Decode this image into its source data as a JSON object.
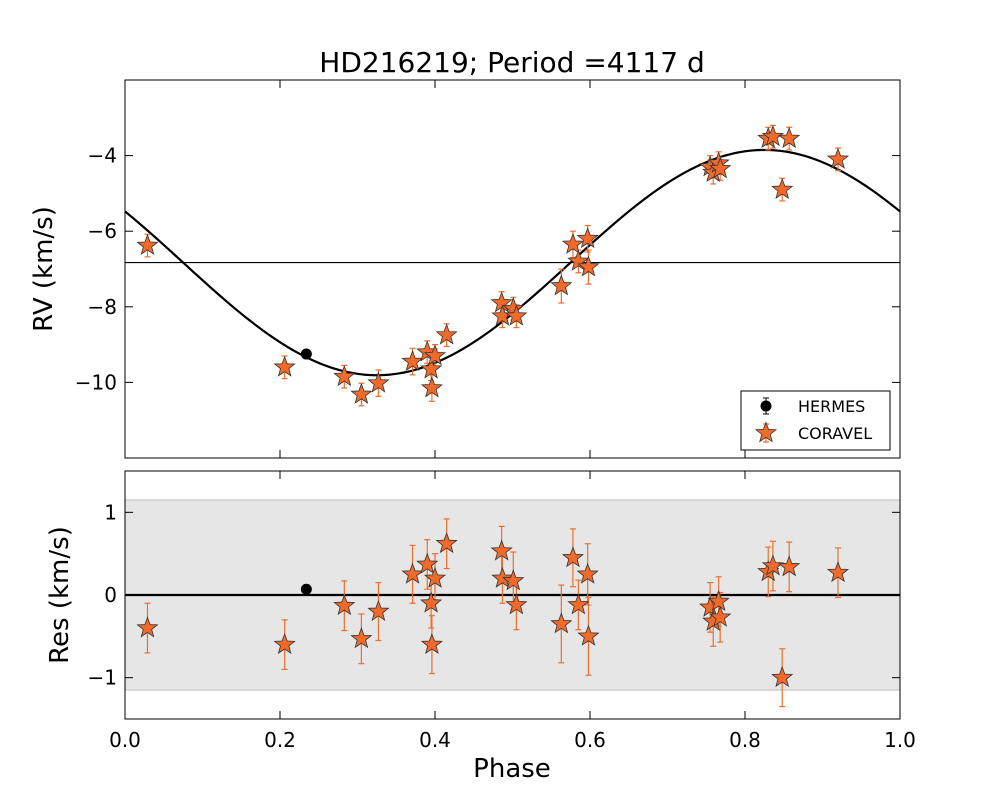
{
  "chart_data": {
    "type": "scatter",
    "title": "HD216219; Period =4117 d",
    "period_days": 4117,
    "colors": {
      "coravel_face": "#f26a2a",
      "coravel_error": "#e8702c",
      "hermes_face": "#000000",
      "band": "#e6e6e6",
      "band_edge": "#bdbdbd"
    },
    "x_axis": {
      "label": "Phase",
      "lim": [
        0.0,
        1.0
      ],
      "ticks": [
        0.0,
        0.2,
        0.4,
        0.6,
        0.8,
        1.0
      ],
      "tick_labels": [
        "0.0",
        "0.2",
        "0.4",
        "0.6",
        "0.8",
        "1.0"
      ]
    },
    "rv_panel": {
      "ylabel": "RV (km/s)",
      "ylim": [
        -12.0,
        -2.0
      ],
      "yticks": [
        -10,
        -8,
        -6,
        -4
      ],
      "ytick_labels": [
        "−10",
        "−8",
        "−6",
        "−4"
      ],
      "systemic_velocity": -6.83,
      "model": {
        "semi_amplitude": 2.98,
        "phase_of_maximum": 0.825,
        "x": [
          0.0,
          0.05,
          0.1,
          0.15,
          0.2,
          0.25,
          0.3,
          0.35,
          0.4,
          0.45,
          0.5,
          0.55,
          0.6,
          0.65,
          0.7,
          0.75,
          0.8,
          0.85,
          0.9,
          0.95,
          1.0
        ],
        "y": [
          -5.45,
          -6.36,
          -7.3,
          -8.14,
          -8.87,
          -9.43,
          -9.77,
          -9.81,
          -9.56,
          -9.07,
          -8.39,
          -7.59,
          -6.71,
          -5.85,
          -5.07,
          -4.44,
          -4.0,
          -3.82,
          -3.93,
          -4.36,
          -5.45
        ]
      },
      "series": [
        {
          "name": "HERMES",
          "marker": "circle",
          "points": [
            {
              "phase": 0.234,
              "rv": -9.25,
              "err": 0.08
            }
          ]
        },
        {
          "name": "CORAVEL",
          "marker": "star",
          "points": [
            {
              "phase": 0.029,
              "rv": -6.38,
              "err": 0.3
            },
            {
              "phase": 0.206,
              "rv": -9.6,
              "err": 0.3
            },
            {
              "phase": 0.283,
              "rv": -9.85,
              "err": 0.3
            },
            {
              "phase": 0.305,
              "rv": -10.32,
              "err": 0.3
            },
            {
              "phase": 0.327,
              "rv": -10.02,
              "err": 0.35
            },
            {
              "phase": 0.371,
              "rv": -9.45,
              "err": 0.35
            },
            {
              "phase": 0.39,
              "rv": -9.2,
              "err": 0.3
            },
            {
              "phase": 0.395,
              "rv": -9.65,
              "err": 0.3
            },
            {
              "phase": 0.396,
              "rv": -10.15,
              "err": 0.35
            },
            {
              "phase": 0.4,
              "rv": -9.3,
              "err": 0.3
            },
            {
              "phase": 0.415,
              "rv": -8.75,
              "err": 0.3
            },
            {
              "phase": 0.486,
              "rv": -7.9,
              "err": 0.3
            },
            {
              "phase": 0.487,
              "rv": -8.25,
              "err": 0.3
            },
            {
              "phase": 0.501,
              "rv": -8.05,
              "err": 0.3
            },
            {
              "phase": 0.505,
              "rv": -8.25,
              "err": 0.3
            },
            {
              "phase": 0.563,
              "rv": -7.45,
              "err": 0.45
            },
            {
              "phase": 0.578,
              "rv": -6.35,
              "err": 0.35
            },
            {
              "phase": 0.585,
              "rv": -6.8,
              "err": 0.3
            },
            {
              "phase": 0.597,
              "rv": -6.2,
              "err": 0.35
            },
            {
              "phase": 0.598,
              "rv": -6.95,
              "err": 0.45
            },
            {
              "phase": 0.755,
              "rv": -4.3,
              "err": 0.3
            },
            {
              "phase": 0.759,
              "rv": -4.45,
              "err": 0.3
            },
            {
              "phase": 0.766,
              "rv": -4.2,
              "err": 0.3
            },
            {
              "phase": 0.768,
              "rv": -4.35,
              "err": 0.3
            },
            {
              "phase": 0.83,
              "rv": -3.55,
              "err": 0.3
            },
            {
              "phase": 0.836,
              "rv": -3.5,
              "err": 0.3
            },
            {
              "phase": 0.848,
              "rv": -4.9,
              "err": 0.3
            },
            {
              "phase": 0.857,
              "rv": -3.55,
              "err": 0.3
            },
            {
              "phase": 0.92,
              "rv": -4.1,
              "err": 0.3
            }
          ]
        }
      ],
      "legend": {
        "location": "lower right",
        "entries": [
          "HERMES",
          "CORAVEL"
        ]
      }
    },
    "res_panel": {
      "ylabel": "Res (km/s)",
      "ylim": [
        -1.5,
        1.5
      ],
      "yticks": [
        -1,
        0,
        1
      ],
      "ytick_labels": [
        "−1",
        "0",
        "1"
      ],
      "band": [
        -1.15,
        1.15
      ],
      "zero_line": 0,
      "series": [
        {
          "name": "HERMES",
          "marker": "circle",
          "points": [
            {
              "phase": 0.234,
              "res": 0.07,
              "err": 0.04
            }
          ]
        },
        {
          "name": "CORAVEL",
          "marker": "star",
          "points": [
            {
              "phase": 0.029,
              "res": -0.4,
              "err": 0.3
            },
            {
              "phase": 0.206,
              "res": -0.6,
              "err": 0.3
            },
            {
              "phase": 0.283,
              "res": -0.13,
              "err": 0.3
            },
            {
              "phase": 0.305,
              "res": -0.53,
              "err": 0.3
            },
            {
              "phase": 0.327,
              "res": -0.2,
              "err": 0.35
            },
            {
              "phase": 0.371,
              "res": 0.25,
              "err": 0.35
            },
            {
              "phase": 0.39,
              "res": 0.37,
              "err": 0.3
            },
            {
              "phase": 0.395,
              "res": -0.1,
              "err": 0.3
            },
            {
              "phase": 0.396,
              "res": -0.6,
              "err": 0.35
            },
            {
              "phase": 0.4,
              "res": 0.2,
              "err": 0.3
            },
            {
              "phase": 0.415,
              "res": 0.62,
              "err": 0.3
            },
            {
              "phase": 0.486,
              "res": 0.53,
              "err": 0.3
            },
            {
              "phase": 0.487,
              "res": 0.2,
              "err": 0.3
            },
            {
              "phase": 0.501,
              "res": 0.17,
              "err": 0.35
            },
            {
              "phase": 0.505,
              "res": -0.12,
              "err": 0.3
            },
            {
              "phase": 0.563,
              "res": -0.35,
              "err": 0.47
            },
            {
              "phase": 0.578,
              "res": 0.45,
              "err": 0.35
            },
            {
              "phase": 0.585,
              "res": -0.12,
              "err": 0.3
            },
            {
              "phase": 0.597,
              "res": 0.25,
              "err": 0.37
            },
            {
              "phase": 0.598,
              "res": -0.5,
              "err": 0.47
            },
            {
              "phase": 0.755,
              "res": -0.15,
              "err": 0.3
            },
            {
              "phase": 0.759,
              "res": -0.32,
              "err": 0.3
            },
            {
              "phase": 0.766,
              "res": -0.08,
              "err": 0.3
            },
            {
              "phase": 0.768,
              "res": -0.27,
              "err": 0.3
            },
            {
              "phase": 0.83,
              "res": 0.28,
              "err": 0.3
            },
            {
              "phase": 0.836,
              "res": 0.35,
              "err": 0.3
            },
            {
              "phase": 0.848,
              "res": -1.0,
              "err": 0.35
            },
            {
              "phase": 0.857,
              "res": 0.34,
              "err": 0.3
            },
            {
              "phase": 0.92,
              "res": 0.27,
              "err": 0.3
            }
          ]
        }
      ]
    }
  }
}
